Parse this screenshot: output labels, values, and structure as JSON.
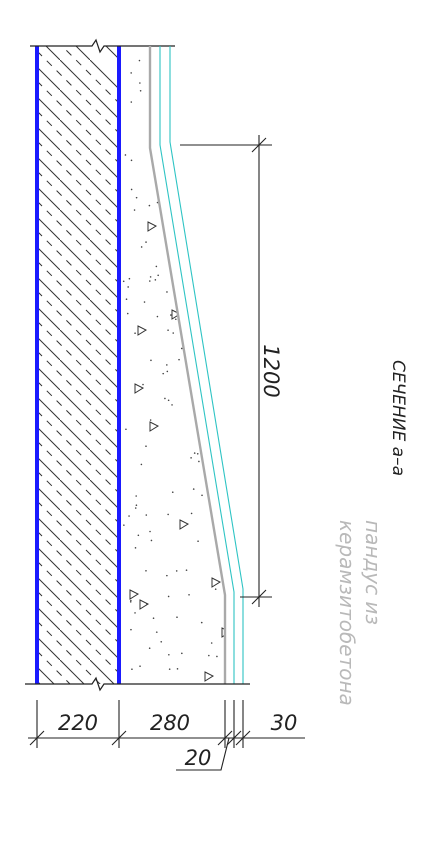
{
  "section_title": "СЕЧЕНИЕ а–а",
  "material_note": {
    "line1": "пандус из",
    "line2": "керамзитобетона"
  },
  "dimensions": {
    "wall": "220",
    "fill": "280",
    "gap": "20",
    "finish": "30",
    "slope_height": "1200"
  },
  "colors": {
    "wall_face": "#1a1aff",
    "screed": "#a9a9a9",
    "finish_layer": "#2ec4c4",
    "hatch": "#333333",
    "dim_line": "#222222",
    "note_text": "#b9b9b9"
  }
}
